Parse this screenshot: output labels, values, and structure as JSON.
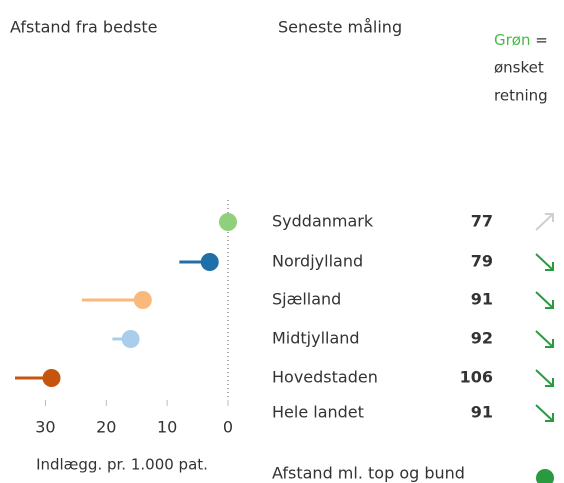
{
  "chart_data": {
    "type": "dot",
    "title": "Afstand fra bedste",
    "table_title": "Seneste måling",
    "note": {
      "highlight": "Grøn",
      "rest": "=",
      "lines": [
        "ønsket",
        "retning"
      ],
      "color": "#4cb84c"
    },
    "xlabel": "Indlægg. pr. 1.000 pat.",
    "xlim": [
      35,
      0
    ],
    "xticks": [
      30,
      20,
      10,
      0
    ],
    "categories": [
      "Syddanmark",
      "Nordjylland",
      "Sjælland",
      "Midtjylland",
      "Hovedstaden",
      "Hele landet"
    ],
    "values": [
      0,
      3,
      14,
      16,
      29,
      null
    ],
    "whisker_ends": [
      null,
      8,
      24,
      19,
      35,
      null
    ],
    "colors": [
      "#8fd17a",
      "#1f6fa8",
      "#f9b97a",
      "#a9cdea",
      "#c6540f",
      "#111111"
    ],
    "latest": [
      77,
      79,
      91,
      92,
      106,
      91
    ],
    "trends": [
      "up",
      "down",
      "down",
      "down",
      "down",
      "down"
    ],
    "trend_colors": {
      "up": "#cfcfcf",
      "down": "#2a9a3e"
    },
    "footer": {
      "text": "Afstand ml. top og bund",
      "color": "#2a9a3e"
    }
  }
}
